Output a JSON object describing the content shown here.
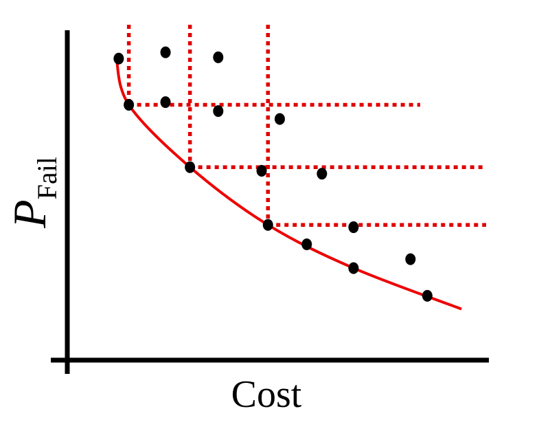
{
  "chart_data": {
    "type": "scatter",
    "title": "",
    "xlabel": "Cost",
    "ylabel_main": "P",
    "ylabel_sub": "Fail",
    "ticks": false,
    "grid": false,
    "xlim": [
      0,
      100
    ],
    "ylim": [
      0,
      100
    ],
    "points": [
      {
        "x": 12.2,
        "y": 91.4,
        "pareto": false
      },
      {
        "x": 23.3,
        "y": 93.3,
        "pareto": false
      },
      {
        "x": 35.8,
        "y": 91.8,
        "pareto": false
      },
      {
        "x": 14.6,
        "y": 77.4,
        "pareto": true
      },
      {
        "x": 23.3,
        "y": 78.2,
        "pareto": false
      },
      {
        "x": 35.8,
        "y": 75.5,
        "pareto": false
      },
      {
        "x": 50.4,
        "y": 73.1,
        "pareto": false
      },
      {
        "x": 29.1,
        "y": 58.5,
        "pareto": true
      },
      {
        "x": 46.1,
        "y": 57.4,
        "pareto": false
      },
      {
        "x": 60.4,
        "y": 56.5,
        "pareto": false
      },
      {
        "x": 47.6,
        "y": 41.0,
        "pareto": true
      },
      {
        "x": 67.9,
        "y": 40.3,
        "pareto": false
      },
      {
        "x": 56.8,
        "y": 35.1,
        "pareto": false
      },
      {
        "x": 67.9,
        "y": 27.9,
        "pareto": false
      },
      {
        "x": 81.4,
        "y": 30.6,
        "pareto": false
      },
      {
        "x": 85.4,
        "y": 19.5,
        "pareto": false
      }
    ],
    "frontier_curve": [
      {
        "x": 11.6,
        "y": 92.0
      },
      {
        "x": 14.6,
        "y": 77.4
      },
      {
        "x": 29.1,
        "y": 58.5
      },
      {
        "x": 47.6,
        "y": 41.0
      },
      {
        "x": 67.9,
        "y": 27.9
      },
      {
        "x": 93.5,
        "y": 15.5
      }
    ],
    "dominance_lines": [
      {
        "x": 14.6,
        "y": 77.4
      },
      {
        "x": 29.1,
        "y": 58.5
      },
      {
        "x": 47.6,
        "y": 41.0
      }
    ],
    "colors": {
      "points": "#000000",
      "frontier": "#ee0000",
      "dominance": "#e00000",
      "axes": "#000000"
    }
  }
}
